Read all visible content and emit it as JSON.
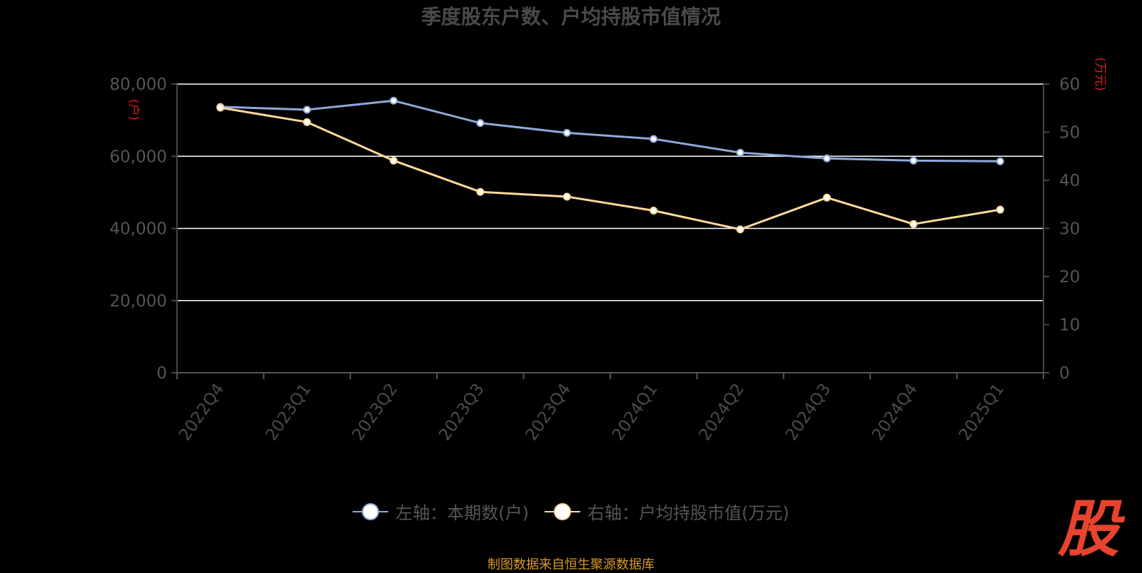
{
  "title": "季度股东户数、户均持股市值情况",
  "left_unit": "(户)",
  "right_unit": "(万元)",
  "source": "制图数据来自恒生聚源数据库",
  "logo": "股",
  "legend": [
    {
      "label": "左轴：本期数(户)",
      "color": "#8eaadb"
    },
    {
      "label": "右轴：户均持股市值(万元)",
      "color": "#ffd99a"
    }
  ],
  "chart_data": {
    "type": "line",
    "title": "季度股东户数、户均持股市值情况",
    "categories": [
      "2022Q4",
      "2023Q1",
      "2023Q2",
      "2023Q3",
      "2023Q4",
      "2024Q1",
      "2024Q2",
      "2024Q3",
      "2024Q4",
      "2025Q1"
    ],
    "y_left": {
      "label": "(户)",
      "ylim": [
        0,
        80000
      ],
      "ticks": [
        0,
        20000,
        40000,
        60000,
        80000
      ],
      "tick_labels": [
        "0",
        "20,000",
        "40,000",
        "60,000",
        "80,000"
      ]
    },
    "y_right": {
      "label": "(万元)",
      "ylim": [
        0,
        60
      ],
      "ticks": [
        0,
        10,
        20,
        30,
        40,
        50,
        60
      ]
    },
    "grid": true,
    "legend_position": "bottom",
    "series": [
      {
        "name": "左轴：本期数(户)",
        "axis": "left",
        "color": "#8eaadb",
        "values": [
          73700,
          72900,
          75400,
          69200,
          66500,
          64800,
          61000,
          59400,
          58800,
          58600
        ]
      },
      {
        "name": "右轴：户均持股市值(万元)",
        "axis": "right",
        "color": "#ffd99a",
        "values": [
          55.1,
          52.1,
          44.1,
          37.6,
          36.6,
          33.7,
          29.8,
          36.4,
          30.9,
          33.9
        ]
      }
    ]
  }
}
